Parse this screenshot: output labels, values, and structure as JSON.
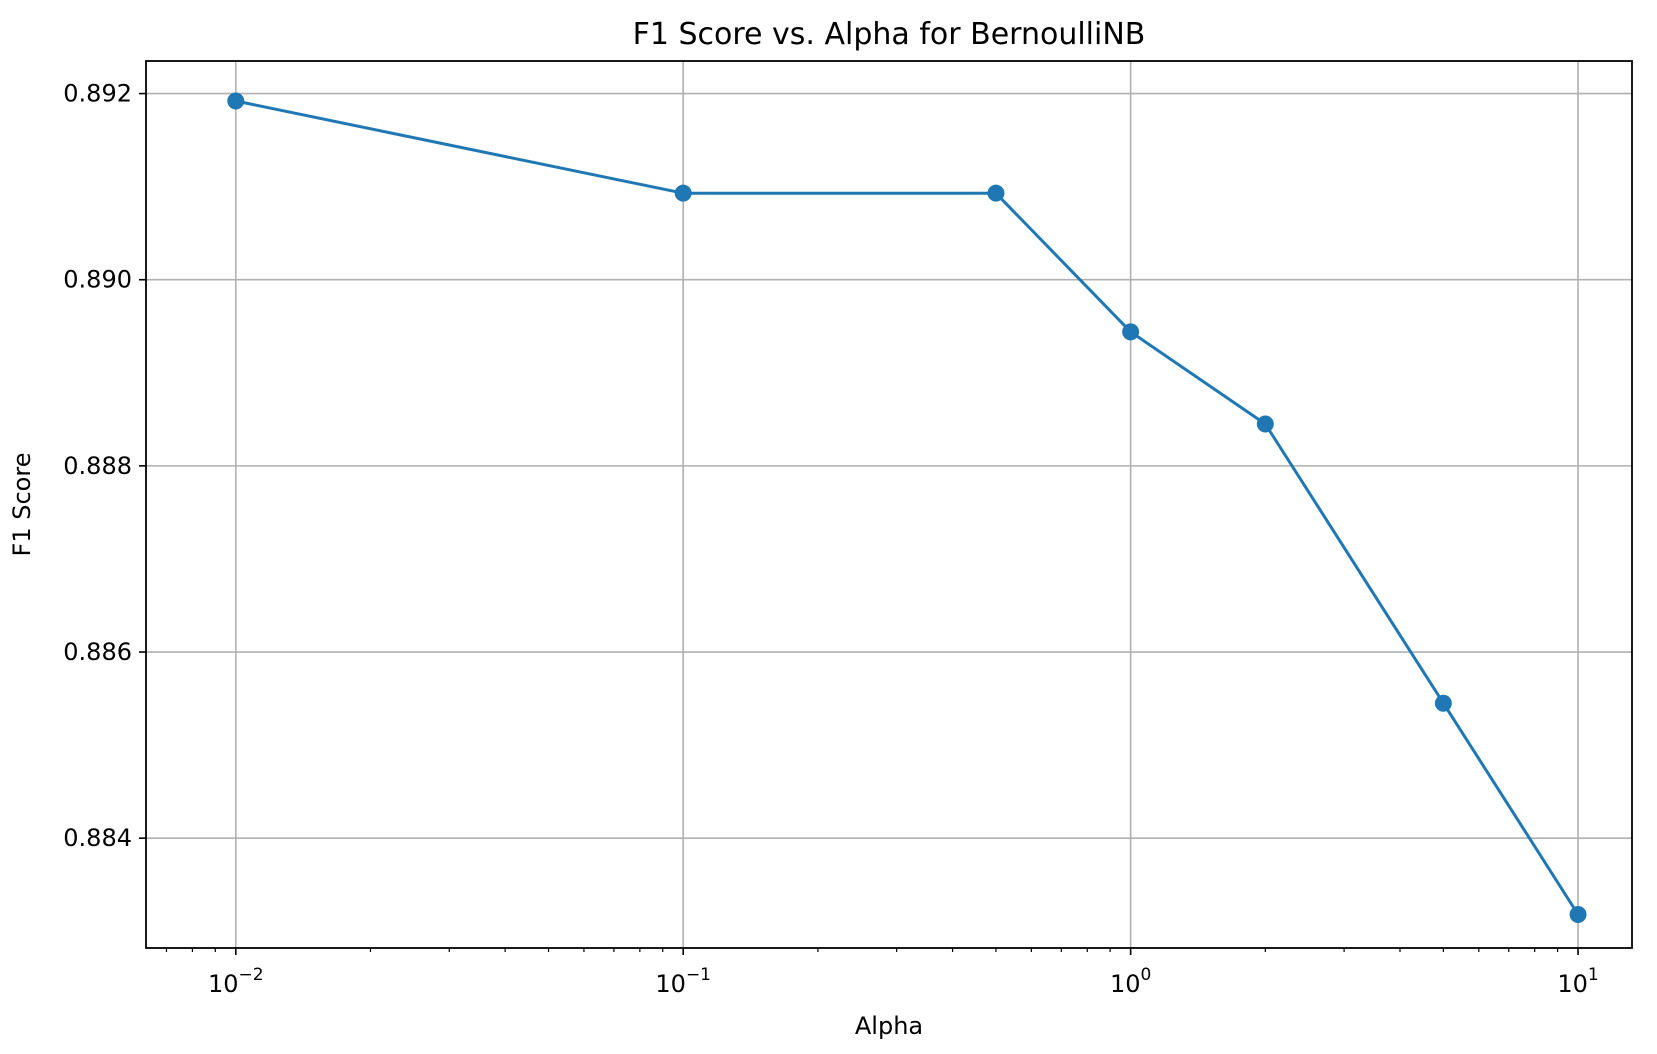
{
  "chart_data": {
    "type": "line",
    "title": "F1 Score vs. Alpha for BernoulliNB",
    "xlabel": "Alpha",
    "ylabel": "F1 Score",
    "x_scale": "log",
    "xlim": [
      0.0063,
      13.2
    ],
    "ylim": [
      0.88282,
      0.89235
    ],
    "x_ticks": [
      {
        "value": 0.01,
        "base": "10",
        "exp": "−2"
      },
      {
        "value": 0.1,
        "base": "10",
        "exp": "−1"
      },
      {
        "value": 1,
        "base": "10",
        "exp": "0"
      },
      {
        "value": 10,
        "base": "10",
        "exp": "1"
      }
    ],
    "y_ticks": [
      {
        "value": 0.884,
        "label": "0.884"
      },
      {
        "value": 0.886,
        "label": "0.886"
      },
      {
        "value": 0.888,
        "label": "0.888"
      },
      {
        "value": 0.89,
        "label": "0.890"
      },
      {
        "value": 0.892,
        "label": "0.892"
      }
    ],
    "grid": true,
    "series": [
      {
        "color": "#1f77b4",
        "x": [
          0.01,
          0.1,
          0.5,
          1,
          2,
          5,
          10
        ],
        "y": [
          0.89192,
          0.89093,
          0.89093,
          0.88944,
          0.88845,
          0.88545,
          0.88318
        ]
      }
    ]
  }
}
